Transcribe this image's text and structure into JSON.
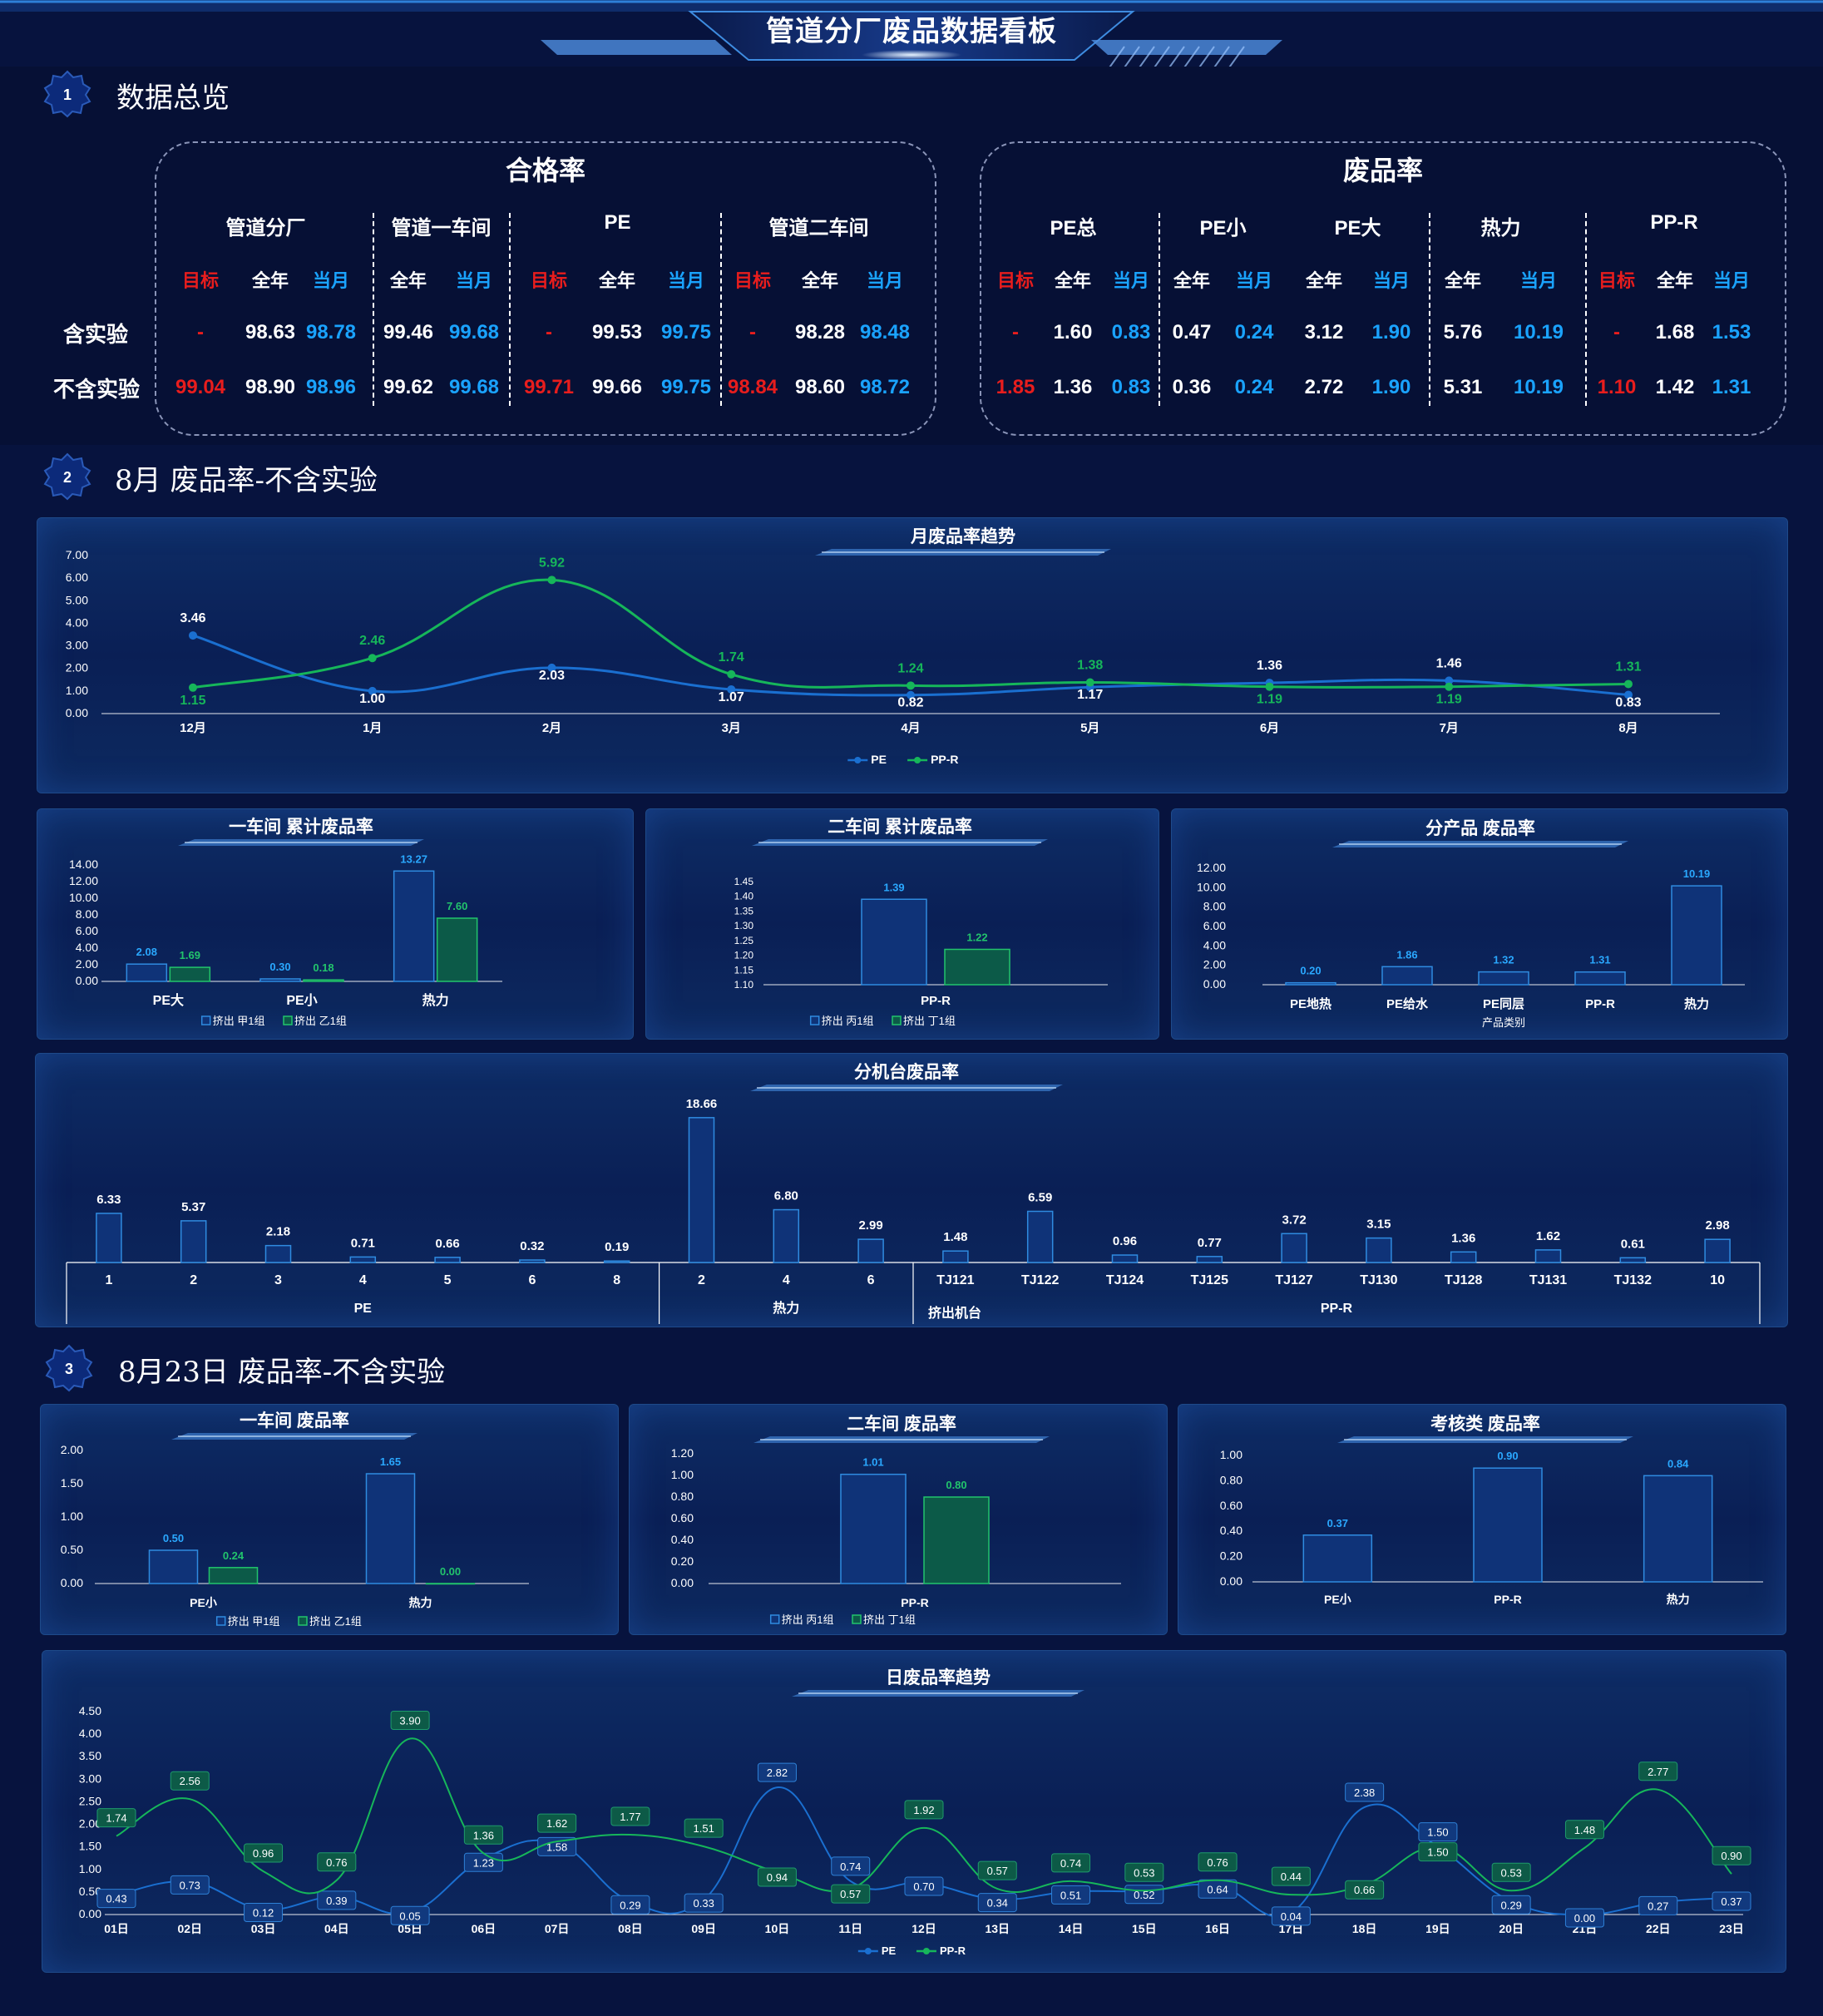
{
  "header": {
    "title": "管道分厂废品数据看板"
  },
  "sections": [
    {
      "num": "1",
      "title": "数据总览"
    },
    {
      "num": "2",
      "title": "8月 废品率-不含实验"
    },
    {
      "num": "3",
      "title": "8月23日 废品率-不含实验"
    }
  ],
  "qualified": {
    "title": "合格率",
    "groups": [
      "管道分厂",
      "管道一车间",
      "PE",
      "管道二车间"
    ],
    "subheaders": [
      "目标",
      "全年",
      "当月",
      "全年",
      "当月",
      "目标",
      "全年",
      "当月",
      "目标",
      "全年",
      "当月"
    ],
    "rows": [
      {
        "label": "含实验",
        "values": [
          "-",
          "98.63",
          "98.78",
          "99.46",
          "99.68",
          "-",
          "99.53",
          "99.75",
          "-",
          "98.28",
          "98.48"
        ]
      },
      {
        "label": "不含实验",
        "values": [
          "99.04",
          "98.90",
          "98.96",
          "99.62",
          "99.68",
          "99.71",
          "99.66",
          "99.75",
          "98.84",
          "98.60",
          "98.72"
        ]
      }
    ]
  },
  "scrap": {
    "title": "废品率",
    "groups": [
      "PE总",
      "PE小",
      "PE大",
      "热力",
      "PP-R"
    ],
    "subheaders": [
      "目标",
      "全年",
      "当月",
      "全年",
      "当月",
      "全年",
      "当月",
      "全年",
      "当月",
      "目标",
      "全年",
      "当月"
    ],
    "rows": [
      {
        "label": "含实验",
        "values": [
          "-",
          "1.60",
          "0.83",
          "0.47",
          "0.24",
          "3.12",
          "1.90",
          "5.76",
          "10.19",
          "-",
          "1.68",
          "1.53"
        ]
      },
      {
        "label": "不含实验",
        "values": [
          "1.85",
          "1.36",
          "0.83",
          "0.36",
          "0.24",
          "2.72",
          "1.90",
          "5.31",
          "10.19",
          "1.10",
          "1.42",
          "1.31"
        ]
      }
    ]
  },
  "colors": {
    "red": "#e81d1d",
    "blue": "#1aa3ff",
    "green": "#16b65a",
    "line_blue": "#1a6fd0"
  },
  "chart_data": [
    {
      "id": "monthly",
      "type": "line",
      "title": "月废品率趋势",
      "categories": [
        "12月",
        "1月",
        "2月",
        "3月",
        "4月",
        "5月",
        "6月",
        "7月",
        "8月"
      ],
      "yticks": [
        "7.00",
        "6.00",
        "5.00",
        "4.00",
        "3.00",
        "2.00",
        "1.00",
        "0.00"
      ],
      "ylim": [
        0,
        7
      ],
      "series": [
        {
          "name": "PE",
          "values": [
            3.46,
            1.0,
            2.03,
            1.07,
            0.82,
            1.17,
            1.36,
            1.46,
            0.83
          ],
          "labels": [
            "3.46",
            "1.00",
            "2.03",
            "1.07",
            "0.82",
            "1.17",
            "1.36",
            "1.46",
            "0.83"
          ]
        },
        {
          "name": "PP-R",
          "values": [
            1.15,
            2.46,
            5.92,
            1.74,
            1.24,
            1.38,
            1.19,
            1.19,
            1.31
          ],
          "labels": [
            "1.15",
            "2.46",
            "5.92",
            "1.74",
            "1.24",
            "1.38",
            "1.19",
            "1.19",
            "1.31"
          ]
        }
      ]
    },
    {
      "id": "ws1",
      "type": "bar",
      "title": "一车间 累计废品率",
      "categories": [
        "PE大",
        "PE小",
        "热力"
      ],
      "yticks": [
        "14.00",
        "12.00",
        "10.00",
        "8.00",
        "6.00",
        "4.00",
        "2.00",
        "0.00"
      ],
      "ylim": [
        0,
        14
      ],
      "series": [
        {
          "name": "挤出 甲1组",
          "values": [
            2.08,
            0.3,
            13.27
          ],
          "labels": [
            "2.08",
            "0.30",
            "13.27"
          ]
        },
        {
          "name": "挤出 乙1组",
          "values": [
            1.69,
            0.18,
            7.6
          ],
          "labels": [
            "1.69",
            "0.18",
            "7.60"
          ]
        }
      ]
    },
    {
      "id": "ws2",
      "type": "bar",
      "title": "二车间 累计废品率",
      "categories": [
        "PP-R"
      ],
      "yticks": [
        "1.45",
        "1.40",
        "1.35",
        "1.30",
        "1.25",
        "1.20",
        "1.15",
        "1.10"
      ],
      "ylim": [
        1.1,
        1.45
      ],
      "series": [
        {
          "name": "挤出 丙1组",
          "values": [
            1.39
          ],
          "labels": [
            "1.39"
          ]
        },
        {
          "name": "挤出 丁1组",
          "values": [
            1.22
          ],
          "labels": [
            "1.22"
          ]
        }
      ]
    },
    {
      "id": "product",
      "type": "bar",
      "title": "分产品 废品率",
      "categories": [
        "PE地热",
        "PE给水",
        "PE同层",
        "PP-R",
        "热力"
      ],
      "yticks": [
        "12.00",
        "10.00",
        "8.00",
        "6.00",
        "4.00",
        "2.00",
        "0.00"
      ],
      "ylim": [
        0,
        12
      ],
      "xlabel": "产品类别",
      "series": [
        {
          "values": [
            0.2,
            1.86,
            1.32,
            1.31,
            10.19
          ],
          "labels": [
            "0.20",
            "1.86",
            "1.32",
            "1.31",
            "10.19"
          ]
        }
      ]
    },
    {
      "id": "machine",
      "type": "bar",
      "title": "分机台废品率",
      "categories": [
        "1",
        "2",
        "3",
        "4",
        "5",
        "6",
        "8",
        "2",
        "4",
        "6",
        "TJ121",
        "TJ122",
        "TJ124",
        "TJ125",
        "TJ127",
        "TJ130",
        "TJ128",
        "TJ131",
        "TJ132",
        "10"
      ],
      "groups": [
        {
          "label": "PE",
          "count": 7
        },
        {
          "label": "热力",
          "count": 3
        },
        {
          "label": "PP-R",
          "count": 10
        }
      ],
      "axis_title": "挤出机台",
      "values": [
        6.33,
        5.37,
        2.18,
        0.71,
        0.66,
        0.32,
        0.19,
        18.66,
        6.8,
        2.99,
        1.48,
        6.59,
        0.96,
        0.77,
        3.72,
        3.15,
        1.36,
        1.62,
        0.61,
        2.98
      ],
      "labels": [
        "6.33",
        "5.37",
        "2.18",
        "0.71",
        "0.66",
        "0.32",
        "0.19",
        "18.66",
        "6.80",
        "2.99",
        "1.48",
        "6.59",
        "0.96",
        "0.77",
        "3.72",
        "3.15",
        "1.36",
        "1.62",
        "0.61",
        "2.98"
      ]
    },
    {
      "id": "d_ws1",
      "type": "bar",
      "title": "一车间 废品率",
      "categories": [
        "PE小",
        "热力"
      ],
      "yticks": [
        "2.00",
        "1.50",
        "1.00",
        "0.50",
        "0.00"
      ],
      "ylim": [
        0,
        2
      ],
      "series": [
        {
          "name": "挤出 甲1组",
          "values": [
            0.5,
            1.65
          ],
          "labels": [
            "0.50",
            "1.65"
          ]
        },
        {
          "name": "挤出 乙1组",
          "values": [
            0.24,
            0.0
          ],
          "labels": [
            "0.24",
            "0.00"
          ]
        }
      ]
    },
    {
      "id": "d_ws2",
      "type": "bar",
      "title": "二车间 废品率",
      "categories": [
        "PP-R"
      ],
      "yticks": [
        "1.20",
        "1.00",
        "0.80",
        "0.60",
        "0.40",
        "0.20",
        "0.00"
      ],
      "ylim": [
        0,
        1.2
      ],
      "series": [
        {
          "name": "挤出 丙1组",
          "values": [
            1.01
          ],
          "labels": [
            "1.01"
          ]
        },
        {
          "name": "挤出 丁1组",
          "values": [
            0.8
          ],
          "labels": [
            "0.80"
          ]
        }
      ]
    },
    {
      "id": "d_exam",
      "type": "bar",
      "title": "考核类 废品率",
      "categories": [
        "PE小",
        "PP-R",
        "热力"
      ],
      "yticks": [
        "1.00",
        "0.80",
        "0.60",
        "0.40",
        "0.20",
        "0.00"
      ],
      "ylim": [
        0,
        1
      ],
      "series": [
        {
          "values": [
            0.37,
            0.9,
            0.84
          ],
          "labels": [
            "0.37",
            "0.90",
            "0.84"
          ]
        }
      ]
    },
    {
      "id": "daily",
      "type": "line",
      "title": "日废品率趋势",
      "categories": [
        "01日",
        "02日",
        "03日",
        "04日",
        "05日",
        "06日",
        "07日",
        "08日",
        "09日",
        "10日",
        "11日",
        "12日",
        "13日",
        "14日",
        "15日",
        "16日",
        "17日",
        "18日",
        "19日",
        "20日",
        "21日",
        "22日",
        "23日"
      ],
      "yticks": [
        "4.50",
        "4.00",
        "3.50",
        "3.00",
        "2.50",
        "2.00",
        "1.50",
        "1.00",
        "0.50",
        "0.00"
      ],
      "ylim": [
        0,
        4.5
      ],
      "series": [
        {
          "name": "PE",
          "values": [
            0.43,
            0.73,
            0.12,
            0.39,
            0.05,
            1.23,
            1.58,
            0.29,
            0.33,
            2.82,
            0.74,
            0.7,
            0.34,
            0.51,
            0.52,
            0.64,
            0.04,
            2.38,
            1.5,
            0.29,
            0.0,
            0.27,
            0.37
          ],
          "labels": [
            "0.43",
            "0.73",
            "0.12",
            "0.39",
            "0.05",
            "1.23",
            "1.58",
            "0.29",
            "0.33",
            "2.82",
            "0.74",
            "0.70",
            "0.34",
            "0.51",
            "0.52",
            "0.64",
            "0.04",
            "2.38",
            "1.50",
            "0.29",
            "0.00",
            "0.27",
            "0.37"
          ]
        },
        {
          "name": "PP-R",
          "values": [
            1.74,
            2.56,
            0.96,
            0.76,
            3.9,
            1.36,
            1.62,
            1.77,
            1.51,
            0.94,
            0.57,
            1.92,
            0.57,
            0.74,
            0.53,
            0.76,
            0.44,
            0.66,
            1.5,
            0.53,
            1.48,
            2.77,
            0.9
          ],
          "labels": [
            "1.74",
            "2.56",
            "0.96",
            "0.76",
            "3.90",
            "1.36",
            "1.62",
            "1.77",
            "1.51",
            "0.94",
            "0.57",
            "1.92",
            "0.57",
            "0.74",
            "0.53",
            "0.76",
            "0.44",
            "0.66",
            "1.50",
            "0.53",
            "1.48",
            "2.77",
            "0.90"
          ]
        }
      ]
    }
  ]
}
